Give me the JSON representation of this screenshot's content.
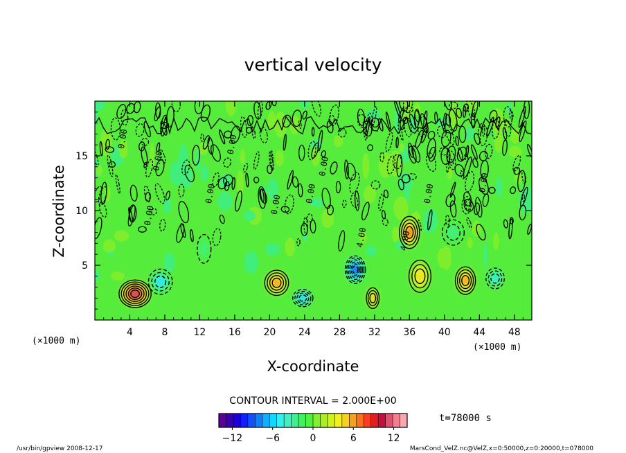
{
  "chart_data": {
    "type": "contour",
    "title": "vertical velocity",
    "xlabel": "X-coordinate",
    "ylabel": "Z-coordinate",
    "x_unit_label_left": "(×1000 m)",
    "x_unit_label_right": "(×1000 m)",
    "xlim": [
      0,
      50
    ],
    "ylim": [
      0,
      20
    ],
    "x_ticks": [
      4,
      8,
      12,
      16,
      20,
      24,
      28,
      32,
      36,
      40,
      44,
      48
    ],
    "y_ticks": [
      5,
      10,
      15
    ],
    "contour_interval_text": "CONTOUR INTERVAL = 2.000E+00",
    "contour_labels": [
      "0.00",
      "0.00",
      "0.00",
      "0.00",
      "0.00",
      "0.00",
      "0.00",
      "0.00",
      "0.00",
      "0.00",
      "4.00",
      "4.00"
    ],
    "time_label": "t=78000 s",
    "colorbar": {
      "min": -14,
      "max": 14,
      "ticks": [
        -12,
        -6,
        0,
        6,
        12
      ],
      "colors": [
        "#5a0096",
        "#3a00b4",
        "#2000d2",
        "#1020ff",
        "#1050ff",
        "#1080ff",
        "#10b0ff",
        "#10d8ff",
        "#30f0f0",
        "#40f0c0",
        "#40f090",
        "#40f060",
        "#50f040",
        "#80f030",
        "#a8f020",
        "#d0f020",
        "#f0f020",
        "#f8d020",
        "#f8a020",
        "#f87020",
        "#f84020",
        "#e02020",
        "#c01040",
        "#e05070",
        "#f08090",
        "#f8a8b0"
      ]
    },
    "features": [
      {
        "x": 4.6,
        "z": 2.4,
        "w": 3.5,
        "h": 2.4,
        "peak": 12.5
      },
      {
        "x": 7.5,
        "z": 3.5,
        "w": 2.6,
        "h": 2.2,
        "peak": -5.5
      },
      {
        "x": 20.8,
        "z": 3.4,
        "w": 2.6,
        "h": 2.2,
        "peak": 7.0
      },
      {
        "x": 23.8,
        "z": 2.0,
        "w": 2.2,
        "h": 1.5,
        "peak": -7.0
      },
      {
        "x": 29.8,
        "z": 4.6,
        "w": 2.2,
        "h": 2.4,
        "peak": -12.0
      },
      {
        "x": 31.8,
        "z": 2.0,
        "w": 1.4,
        "h": 1.8,
        "peak": 6.0
      },
      {
        "x": 36.0,
        "z": 8.0,
        "w": 2.2,
        "h": 2.8,
        "peak": 8.5
      },
      {
        "x": 37.2,
        "z": 4.0,
        "w": 2.4,
        "h": 2.8,
        "peak": 5.0
      },
      {
        "x": 42.4,
        "z": 3.6,
        "w": 2.2,
        "h": 2.4,
        "peak": 7.5
      },
      {
        "x": 45.8,
        "z": 3.8,
        "w": 2.0,
        "h": 1.8,
        "peak": -5.0
      },
      {
        "x": 41.0,
        "z": 8.0,
        "w": 2.4,
        "h": 2.2,
        "peak": -3.0
      },
      {
        "x": 12.5,
        "z": 6.5,
        "w": 1.5,
        "h": 2.5,
        "peak": -2.5
      }
    ]
  },
  "footer": {
    "left_text": "/usr/bin/gpview  2008-12-17",
    "right_text": "MarsCond_VelZ.nc@VelZ,x=0:50000,z=0:20000,t=078000"
  }
}
